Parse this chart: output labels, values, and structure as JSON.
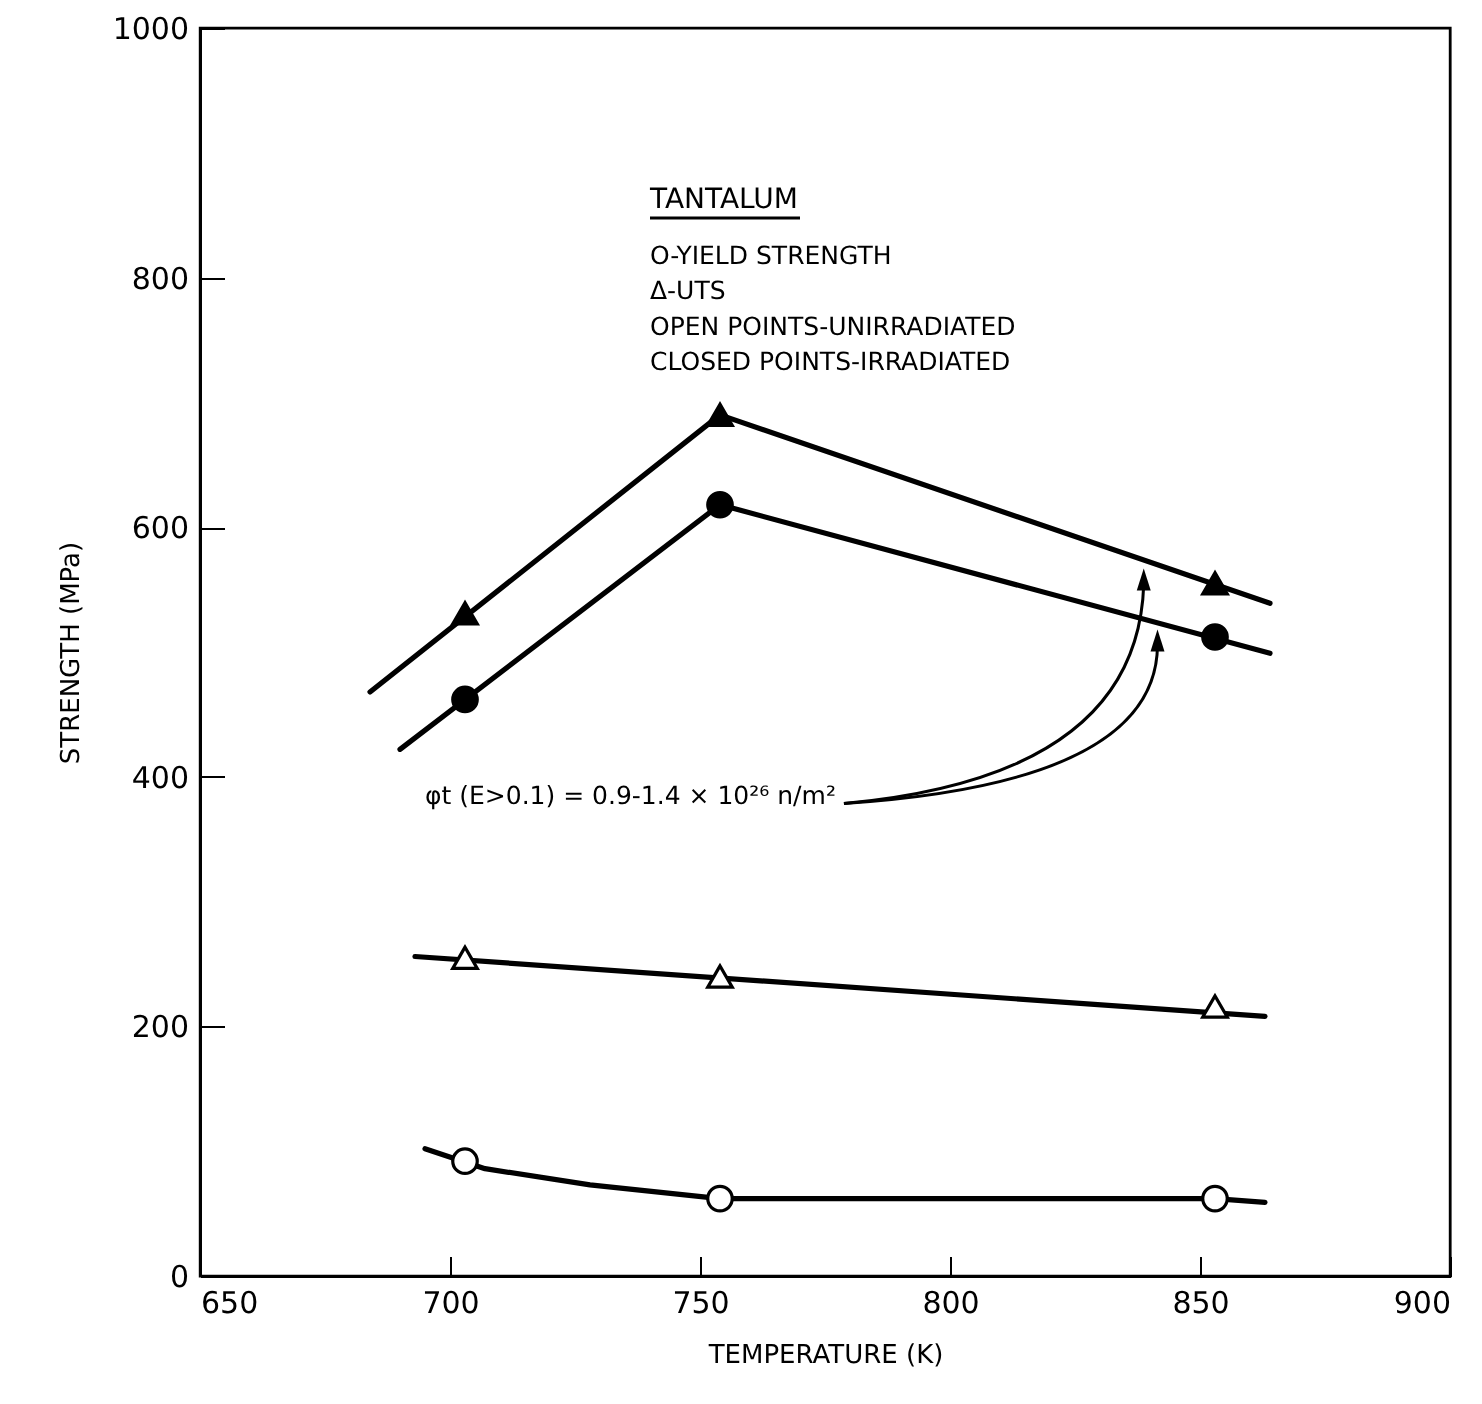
{
  "chart_data": {
    "type": "scatter",
    "xlabel": "TEMPERATURE (K)",
    "ylabel": "STRENGTH (MPa)",
    "xlim": [
      650,
      900
    ],
    "xticks": [
      650,
      700,
      750,
      800,
      850,
      900
    ],
    "ylim": [
      0,
      1000
    ],
    "yticks": [
      0,
      200,
      400,
      600,
      800,
      {
        "value": 1000,
        "label": "1000"
      }
    ],
    "grid": false,
    "annotations": [
      "TANTALUM",
      "O-YIELD STRENGTH",
      "Δ-UTS",
      "OPEN POINTS-UNIRRADIATED",
      "CLOSED POINTS-IRRADIATED",
      "φt (E>0.1) = 0.9-1.4 × 10²⁶ n/m²"
    ],
    "series": [
      {
        "type": "line",
        "color": "#000000",
        "marker": "none",
        "x": [
          684,
          754,
          864
        ],
        "values": [
          468,
          690,
          539
        ]
      },
      {
        "type": "line",
        "color": "#000000",
        "marker": "none",
        "x": [
          690,
          754,
          864
        ],
        "values": [
          422,
          618,
          499
        ]
      },
      {
        "type": "line",
        "color": "#000000",
        "marker": "none",
        "x": [
          693,
          863
        ],
        "values": [
          256,
          208
        ]
      },
      {
        "type": "line",
        "color": "#000000",
        "marker": "none",
        "x": [
          695,
          707,
          728,
          754,
          853,
          863
        ],
        "values": [
          102,
          86,
          73,
          62,
          62,
          59
        ]
      },
      {
        "color": "#000000",
        "marker": "triangle",
        "x": [
          703,
          754,
          853
        ],
        "values": [
          531,
          690,
          555
        ]
      },
      {
        "color": "#000000",
        "marker": "circle",
        "x": [
          703,
          754,
          853
        ],
        "values": [
          462,
          618,
          512
        ]
      },
      {
        "color": "#ffffff",
        "marker": "triangle",
        "x": [
          703,
          754,
          853
        ],
        "values": [
          255,
          240,
          216
        ]
      },
      {
        "color": "#ffffff",
        "marker": "circle",
        "x": [
          703,
          754,
          853
        ],
        "values": [
          92,
          62,
          62
        ]
      }
    ]
  }
}
